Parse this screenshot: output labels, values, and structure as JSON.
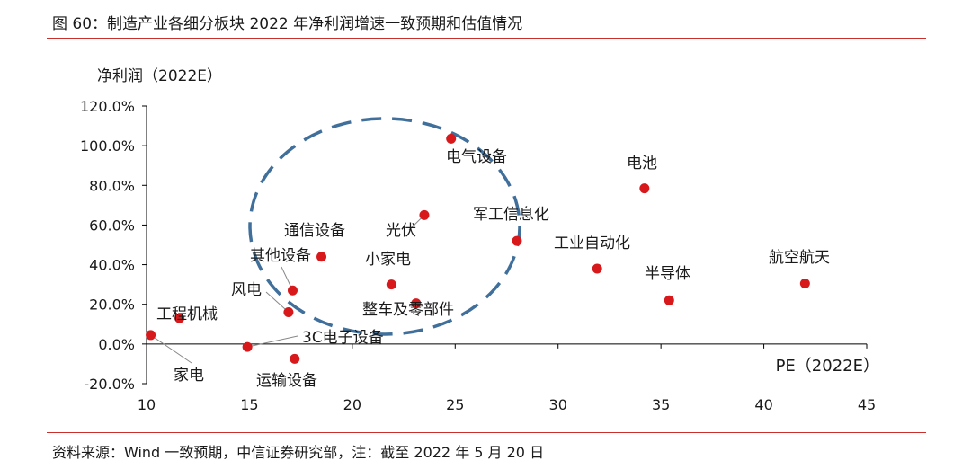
{
  "figure": {
    "title": "图 60：制造产业各细分板块 2022 年净利润增速一致预期和估值情况",
    "source": "资料来源：Wind 一致预期，中信证券研究部，注：截至 2022 年 5 月 20 日"
  },
  "chart_data": {
    "type": "scatter",
    "title": "图 60：制造产业各细分板块 2022 年净利润增速一致预期和估值情况",
    "xlabel": "PE（2022E）",
    "ylabel": "净利润（2022E）",
    "xlim": [
      10,
      45
    ],
    "ylim": [
      -20,
      120
    ],
    "x_ticks": [
      "10",
      "15",
      "20",
      "25",
      "30",
      "35",
      "40",
      "45"
    ],
    "y_ticks": [
      "-20.0%",
      "0.0%",
      "20.0%",
      "40.0%",
      "60.0%",
      "80.0%",
      "100.0%",
      "120.0%"
    ],
    "grid": false,
    "marker_color": "#d7191c",
    "highlight_ellipse_color": "#3f6f9a",
    "points": [
      {
        "label": "电气设备",
        "x": 24.8,
        "y": 103.5
      },
      {
        "label": "光伏",
        "x": 23.5,
        "y": 65
      },
      {
        "label": "通信设备",
        "x": 18.5,
        "y": 44
      },
      {
        "label": "其他设备",
        "x": 17.1,
        "y": 27
      },
      {
        "label": "风电",
        "x": 16.9,
        "y": 16
      },
      {
        "label": "小家电",
        "x": 21.9,
        "y": 30
      },
      {
        "label": "整车及零部件",
        "x": 23.1,
        "y": 20.5
      },
      {
        "label": "军工信息化",
        "x": 28,
        "y": 52
      },
      {
        "label": "工业自动化",
        "x": 31.9,
        "y": 38
      },
      {
        "label": "电池",
        "x": 34.2,
        "y": 78.5
      },
      {
        "label": "半导体",
        "x": 35.4,
        "y": 22
      },
      {
        "label": "航空航天",
        "x": 42,
        "y": 30.5
      },
      {
        "label": "工程机械",
        "x": 11.6,
        "y": 13
      },
      {
        "label": "家电",
        "x": 10.2,
        "y": 4.5
      },
      {
        "label": "3C电子设备",
        "x": 14.9,
        "y": -1.5
      },
      {
        "label": "运输设备",
        "x": 17.2,
        "y": -7.5
      }
    ]
  }
}
